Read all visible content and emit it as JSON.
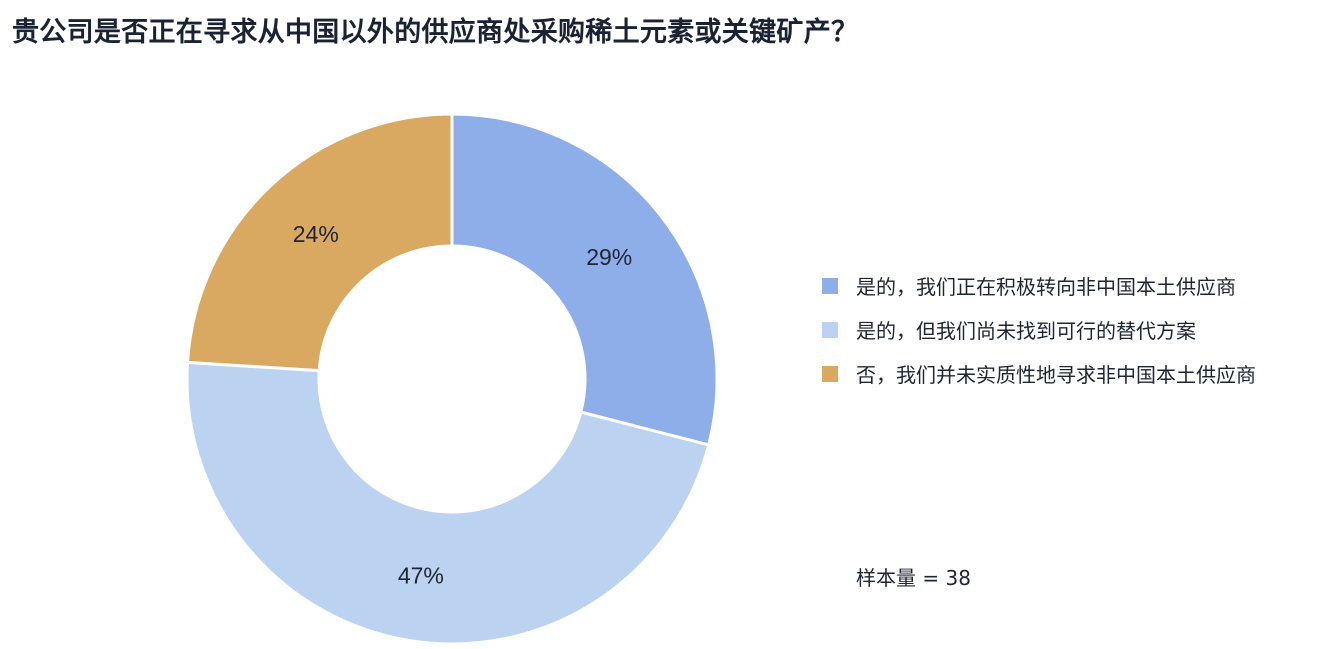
{
  "title": "贵公司是否正在寻求从中国以外的供应商处采购稀土元素或关键矿产？",
  "chart_data": {
    "type": "pie",
    "variant": "donut",
    "categories": [
      "是的，我们正在积极转向非中国本土供应商",
      "是的，但我们尚未找到可行的替代方案",
      "否，我们并未实质性地寻求非中国本土供应商"
    ],
    "values": [
      29,
      47,
      24
    ],
    "labels": [
      "29%",
      "47%",
      "24%"
    ],
    "colors": [
      "#8eaeea",
      "#bcd2f1",
      "#d9a962"
    ],
    "legend_position": "right",
    "note": "样本量 = 38"
  }
}
